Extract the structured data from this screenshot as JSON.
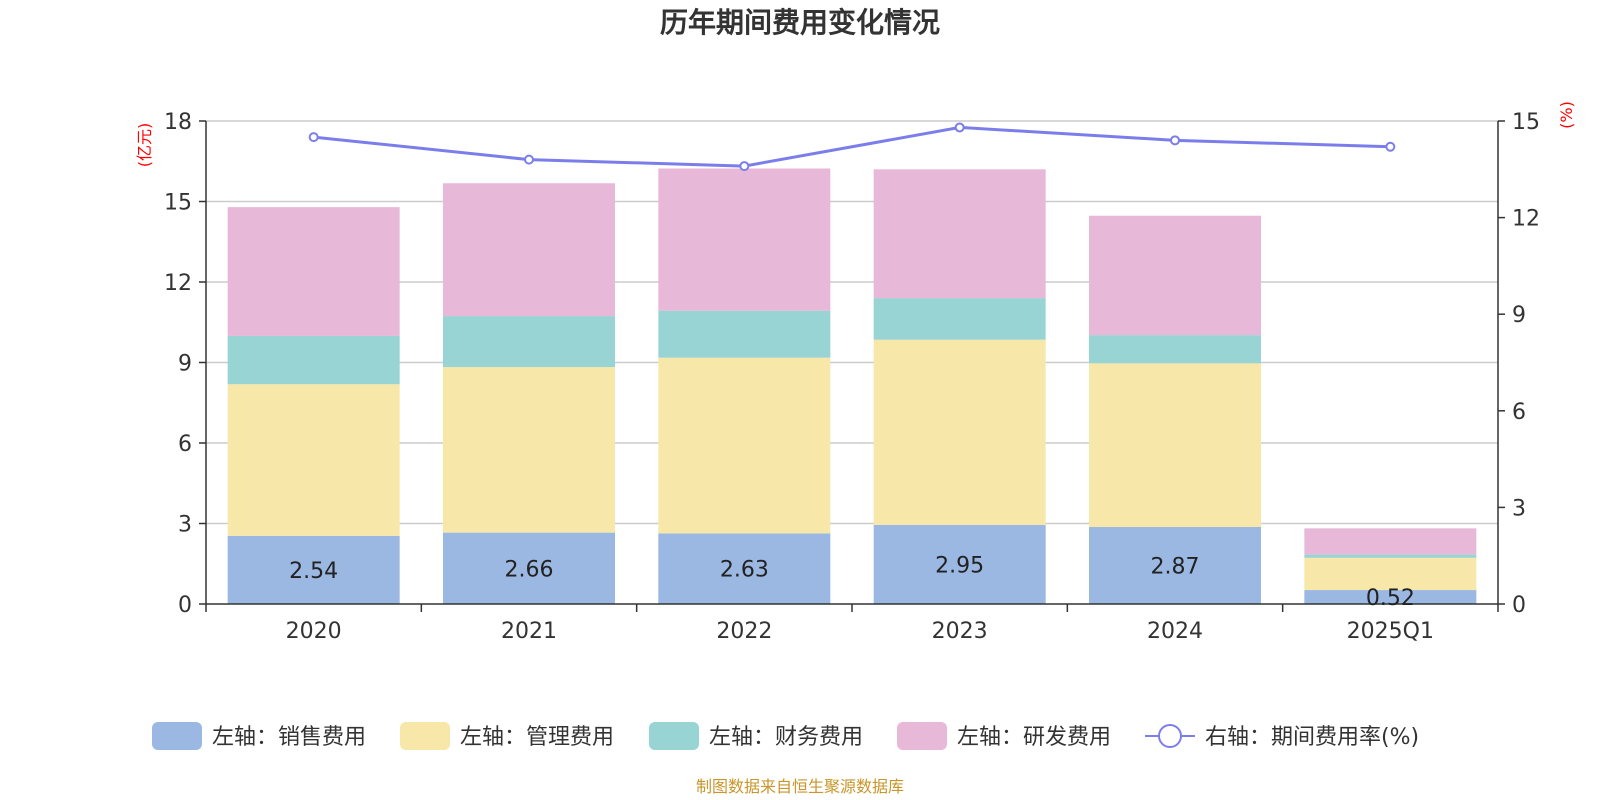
{
  "chart_data": {
    "type": "bar",
    "title": "历年期间费用变化情况",
    "categories": [
      "2020",
      "2021",
      "2022",
      "2023",
      "2024",
      "2025Q1"
    ],
    "left_axis": {
      "unit": "(亿元)",
      "ylim": [
        0,
        18
      ],
      "ticks": [
        0,
        3,
        6,
        9,
        12,
        15,
        18
      ]
    },
    "right_axis": {
      "unit": "(%)",
      "ylim": [
        0,
        15
      ],
      "ticks": [
        0,
        3,
        6,
        9,
        12,
        15
      ]
    },
    "series": [
      {
        "name": "左轴：销售费用",
        "kind": "bar",
        "color": "#9bb8e3",
        "values": [
          2.54,
          2.66,
          2.63,
          2.95,
          2.87,
          0.52
        ],
        "labels": [
          "2.54",
          "2.66",
          "2.63",
          "2.95",
          "2.87",
          "0.52"
        ]
      },
      {
        "name": "左轴：管理费用",
        "kind": "bar",
        "color": "#f7e7a8",
        "values": [
          5.65,
          6.17,
          6.55,
          6.9,
          6.1,
          1.2
        ]
      },
      {
        "name": "左轴：财务费用",
        "kind": "bar",
        "color": "#98d4d4",
        "values": [
          1.8,
          1.9,
          1.75,
          1.55,
          1.05,
          0.12
        ]
      },
      {
        "name": "左轴：研发费用",
        "kind": "bar",
        "color": "#e7b8d8",
        "values": [
          4.8,
          4.95,
          5.3,
          4.8,
          4.45,
          0.98
        ]
      },
      {
        "name": "右轴：期间费用率(%)",
        "kind": "line",
        "color": "#7b7eea",
        "values": [
          14.5,
          13.8,
          13.6,
          14.8,
          14.4,
          14.2
        ]
      }
    ],
    "legend_position": "bottom",
    "grid": true
  },
  "source": "制图数据来自恒生聚源数据库"
}
